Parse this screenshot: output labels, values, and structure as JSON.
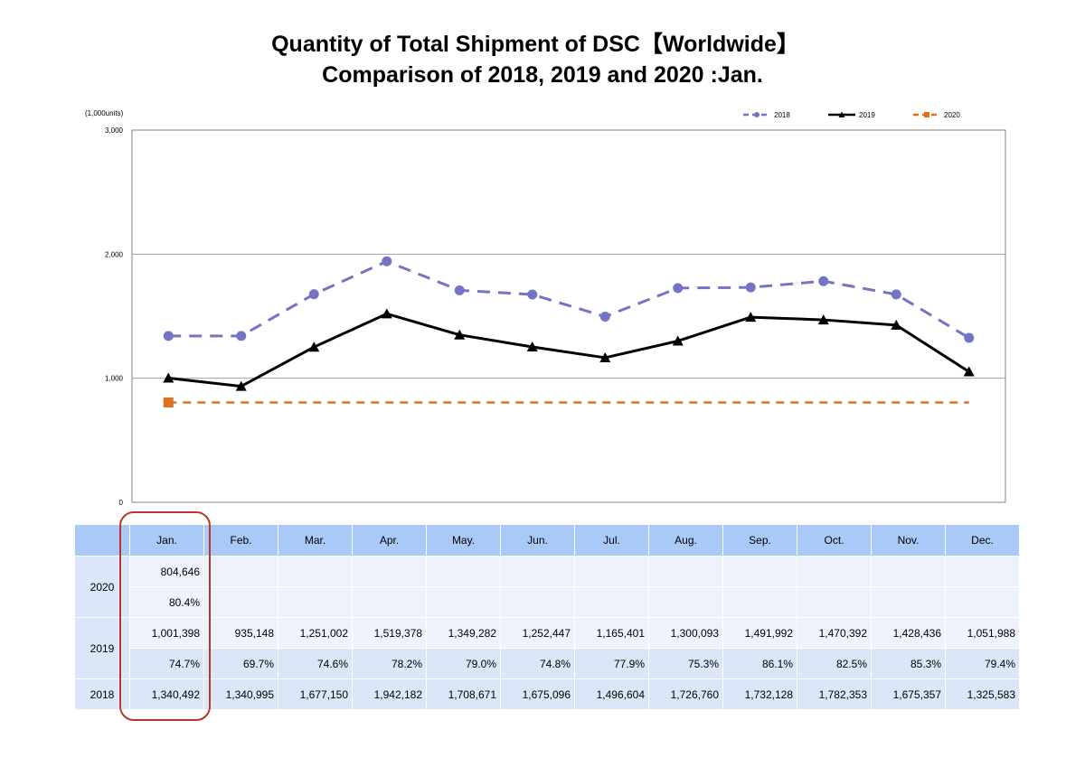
{
  "title_line1": "Quantity of Total Shipment of DSC【Worldwide】",
  "title_line2": "Comparison of 2018, 2019 and 2020 :Jan.",
  "chart_data": {
    "type": "line",
    "title": "Quantity of Total Shipment of DSC【Worldwide】 Comparison of 2018, 2019 and 2020 :Jan.",
    "unit_label": "(1,000units)",
    "categories": [
      "Jan.",
      "Feb.",
      "Mar.",
      "Apr.",
      "May.",
      "Jun.",
      "Jul.",
      "Aug.",
      "Sep.",
      "Oct.",
      "Nov.",
      "Dec."
    ],
    "ylim": [
      0,
      3000
    ],
    "yticks": [
      0,
      1000,
      2000,
      3000
    ],
    "ytick_labels": [
      "0",
      "1,000",
      "2,000",
      "3,000"
    ],
    "grid": true,
    "legend_position": "top-right",
    "series": [
      {
        "name": "2018",
        "color": "#7474c4",
        "style": "dashed",
        "marker": "circle",
        "values": [
          1340.492,
          1340.995,
          1677.15,
          1942.182,
          1708.671,
          1675.096,
          1496.604,
          1726.76,
          1732.128,
          1782.353,
          1675.357,
          1325.583
        ]
      },
      {
        "name": "2019",
        "color": "#000000",
        "style": "solid",
        "marker": "triangle",
        "values": [
          1001.398,
          935.148,
          1251.002,
          1519.378,
          1349.282,
          1252.447,
          1165.401,
          1300.093,
          1491.992,
          1470.392,
          1428.436,
          1051.988
        ]
      },
      {
        "name": "2020",
        "color": "#e07020",
        "style": "dashed",
        "marker": "square",
        "values": [
          804.646,
          null,
          null,
          null,
          null,
          null,
          null,
          null,
          null,
          null,
          null,
          null
        ],
        "reference_line": 804.646
      }
    ]
  },
  "table": {
    "months": [
      "Jan.",
      "Feb.",
      "Mar.",
      "Apr.",
      "May.",
      "Jun.",
      "Jul.",
      "Aug.",
      "Sep.",
      "Oct.",
      "Nov.",
      "Dec."
    ],
    "rows": {
      "y2020": {
        "label": "2020",
        "values": [
          "804,646",
          "",
          "",
          "",
          "",
          "",
          "",
          "",
          "",
          "",
          "",
          ""
        ],
        "ratios": [
          "80.4%",
          "",
          "",
          "",
          "",
          "",
          "",
          "",
          "",
          "",
          "",
          ""
        ]
      },
      "y2019": {
        "label": "2019",
        "values": [
          "1,001,398",
          "935,148",
          "1,251,002",
          "1,519,378",
          "1,349,282",
          "1,252,447",
          "1,165,401",
          "1,300,093",
          "1,491,992",
          "1,470,392",
          "1,428,436",
          "1,051,988"
        ],
        "ratios": [
          "74.7%",
          "69.7%",
          "74.6%",
          "78.2%",
          "79.0%",
          "74.8%",
          "77.9%",
          "75.3%",
          "86.1%",
          "82.5%",
          "85.3%",
          "79.4%"
        ]
      },
      "y2018": {
        "label": "2018",
        "values": [
          "1,340,492",
          "1,340,995",
          "1,677,150",
          "1,942,182",
          "1,708,671",
          "1,675,096",
          "1,496,604",
          "1,726,760",
          "1,732,128",
          "1,782,353",
          "1,675,357",
          "1,325,583"
        ]
      }
    }
  },
  "colors": {
    "header_bg": "#a9c9f9",
    "row_light": "#eef3fb",
    "row_mid": "#dbe7f9",
    "highlight": "#b7382a"
  }
}
